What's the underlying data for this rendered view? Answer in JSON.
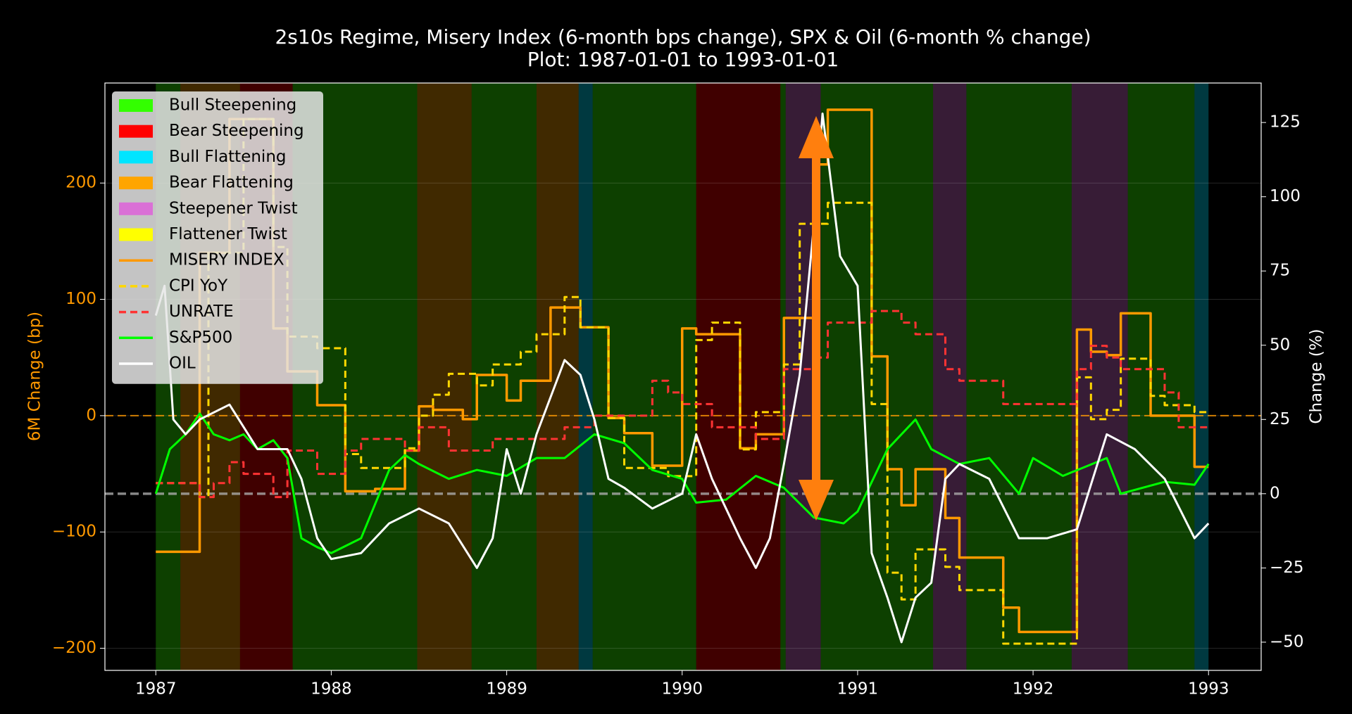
{
  "chart_data": {
    "type": "line",
    "title": "2s10s Regime, Misery Index (6-month bps change), SPX & Oil (6-month % change)",
    "subtitle": "Plot: 1987-01-01 to 1993-01-01",
    "y_label": "6M Change (bp)",
    "y2_label": "Change (%)",
    "xlim": [
      1986.71,
      1993.3
    ],
    "xticks": [
      1987,
      1988,
      1989,
      1990,
      1991,
      1992,
      1993
    ],
    "ylim": [
      -219,
      286
    ],
    "yticks": [
      {
        "value": -200,
        "label": "−200"
      },
      {
        "value": -100,
        "label": "−100"
      },
      0,
      100,
      200
    ],
    "y2lim": [
      -59.5,
      138.3
    ],
    "y2ticks": [
      {
        "value": -50,
        "label": "−50"
      },
      {
        "value": -25,
        "label": "−25"
      },
      0,
      25,
      50,
      75,
      100,
      125
    ],
    "grid": true,
    "legend": "upper left",
    "regimes": [
      {
        "name": "Bull Steepening",
        "color": "#33ff00"
      },
      {
        "name": "Bear Steepening",
        "color": "#ff0000"
      },
      {
        "name": "Bull Flattening",
        "color": "#00e5ff"
      },
      {
        "name": "Bear Flattening",
        "color": "#ffa500"
      },
      {
        "name": "Steepener Twist",
        "color": "#da70d6"
      },
      {
        "name": "Flattener Twist",
        "color": "#ffff00"
      }
    ],
    "regime_spans": [
      {
        "start": 1987.0,
        "end": 1987.14,
        "regime": 0
      },
      {
        "start": 1987.14,
        "end": 1987.48,
        "regime": 3
      },
      {
        "start": 1987.48,
        "end": 1987.78,
        "regime": 1
      },
      {
        "start": 1987.78,
        "end": 1988.49,
        "regime": 0
      },
      {
        "start": 1988.49,
        "end": 1988.8,
        "regime": 3
      },
      {
        "start": 1988.8,
        "end": 1989.17,
        "regime": 0
      },
      {
        "start": 1989.17,
        "end": 1989.41,
        "regime": 3
      },
      {
        "start": 1989.41,
        "end": 1989.49,
        "regime": 2
      },
      {
        "start": 1989.49,
        "end": 1990.08,
        "regime": 0
      },
      {
        "start": 1990.08,
        "end": 1990.56,
        "regime": 1
      },
      {
        "start": 1990.56,
        "end": 1990.59,
        "regime": 0
      },
      {
        "start": 1990.59,
        "end": 1990.79,
        "regime": 4
      },
      {
        "start": 1990.79,
        "end": 1991.43,
        "regime": 0
      },
      {
        "start": 1991.43,
        "end": 1991.62,
        "regime": 4
      },
      {
        "start": 1991.62,
        "end": 1992.22,
        "regime": 0
      },
      {
        "start": 1992.22,
        "end": 1992.54,
        "regime": 4
      },
      {
        "start": 1992.54,
        "end": 1992.92,
        "regime": 0
      },
      {
        "start": 1992.92,
        "end": 1993.0,
        "regime": 2
      }
    ],
    "hlines": [
      {
        "axis": "y",
        "value": 0,
        "color": "#ff9900"
      },
      {
        "axis": "y2",
        "value": 0,
        "color": "#aaaaaa"
      }
    ],
    "series": [
      {
        "name": "MISERY INDEX",
        "color": "#ff9900",
        "axis": "y",
        "step": true,
        "dash": false,
        "x": [
          1987.0,
          1987.25,
          1987.42,
          1987.67,
          1987.75,
          1987.92,
          1988.08,
          1988.25,
          1988.42,
          1988.5,
          1988.58,
          1988.75,
          1988.83,
          1989.0,
          1989.08,
          1989.25,
          1989.42,
          1989.58,
          1989.67,
          1989.83,
          1990.0,
          1990.08,
          1990.33,
          1990.42,
          1990.58,
          1990.75,
          1990.83,
          1991.08,
          1991.17,
          1991.25,
          1991.33,
          1991.5,
          1991.58,
          1991.83,
          1991.92,
          1992.25,
          1992.33,
          1992.42,
          1992.5,
          1992.67,
          1992.92,
          1993.0
        ],
        "values": [
          -117,
          140,
          255,
          75,
          38,
          9,
          -65,
          -63,
          -30,
          8,
          5,
          -3,
          35,
          13,
          30,
          93,
          76,
          -2,
          -15,
          -43,
          75,
          70,
          -28,
          -16,
          84,
          216,
          263,
          51,
          -46,
          -77,
          -46,
          -88,
          -122,
          -165,
          -186,
          74,
          55,
          52,
          88,
          0,
          -44,
          -44
        ]
      },
      {
        "name": "CPI YoY",
        "color": "#ffd700",
        "axis": "y",
        "step": true,
        "dash": true,
        "x": [
          1987.0,
          1987.25,
          1987.3,
          1987.5,
          1987.67,
          1987.75,
          1987.92,
          1988.08,
          1988.17,
          1988.42,
          1988.5,
          1988.58,
          1988.67,
          1988.83,
          1988.92,
          1989.08,
          1989.17,
          1989.33,
          1989.42,
          1989.58,
          1989.67,
          1989.92,
          1990.08,
          1990.17,
          1990.33,
          1990.42,
          1990.58,
          1990.67,
          1990.83,
          1991.08,
          1991.17,
          1991.25,
          1991.33,
          1991.5,
          1991.58,
          1991.83,
          1992.25,
          1992.33,
          1992.42,
          1992.5,
          1992.67,
          1992.75,
          1992.92,
          1993.0
        ],
        "values": [
          -58,
          -70,
          140,
          255,
          145,
          68,
          58,
          -33,
          -45,
          -28,
          0,
          18,
          36,
          26,
          44,
          55,
          70,
          102,
          76,
          -2,
          -45,
          -52,
          65,
          80,
          -29,
          3,
          44,
          165,
          183,
          10,
          -135,
          -158,
          -115,
          -130,
          -150,
          -196,
          33,
          -3,
          5,
          49,
          17,
          9,
          3,
          3
        ]
      },
      {
        "name": "UNRATE",
        "color": "#ff3333",
        "axis": "y",
        "step": true,
        "dash": true,
        "x": [
          1987.0,
          1987.25,
          1987.33,
          1987.42,
          1987.5,
          1987.67,
          1987.75,
          1987.92,
          1988.08,
          1988.17,
          1988.42,
          1988.5,
          1988.67,
          1988.92,
          1989.33,
          1989.5,
          1989.83,
          1989.92,
          1990.0,
          1990.17,
          1990.42,
          1990.58,
          1990.75,
          1990.83,
          1991.08,
          1991.25,
          1991.33,
          1991.5,
          1991.58,
          1991.83,
          1992.25,
          1992.33,
          1992.42,
          1992.5,
          1992.75,
          1992.83,
          1993.0
        ],
        "values": [
          -58,
          -70,
          -58,
          -40,
          -50,
          -70,
          -30,
          -50,
          -30,
          -20,
          -30,
          -10,
          -30,
          -20,
          -10,
          0,
          30,
          20,
          10,
          -10,
          -20,
          40,
          50,
          80,
          90,
          80,
          70,
          40,
          30,
          10,
          40,
          60,
          50,
          40,
          20,
          -10,
          -10
        ]
      },
      {
        "name": "S&P500",
        "color": "#00ff00",
        "axis": "y2",
        "step": false,
        "dash": false,
        "x": [
          1987.0,
          1987.08,
          1987.17,
          1987.25,
          1987.33,
          1987.42,
          1987.5,
          1987.58,
          1987.67,
          1987.75,
          1987.83,
          1987.92,
          1988.0,
          1988.17,
          1988.33,
          1988.42,
          1988.5,
          1988.67,
          1988.83,
          1989.0,
          1989.17,
          1989.33,
          1989.5,
          1989.67,
          1989.83,
          1990.0,
          1990.08,
          1990.25,
          1990.42,
          1990.58,
          1990.75,
          1990.92,
          1991.0,
          1991.17,
          1991.33,
          1991.42,
          1991.58,
          1991.75,
          1991.92,
          1992.0,
          1992.17,
          1992.42,
          1992.5,
          1992.75,
          1992.92,
          1993.0
        ],
        "values": [
          0,
          15,
          20,
          27,
          20,
          18,
          20,
          15,
          18,
          12,
          -15,
          -18,
          -20,
          -15,
          8,
          13,
          10,
          5,
          8,
          6,
          12,
          12,
          20,
          17,
          8,
          5,
          -3,
          -2,
          6,
          2,
          -8,
          -10,
          -6,
          15,
          25,
          15,
          10,
          12,
          0,
          12,
          6,
          12,
          0,
          4,
          3,
          10
        ]
      },
      {
        "name": "OIL",
        "color": "#ffffff",
        "axis": "y2",
        "step": false,
        "dash": false,
        "x": [
          1987.0,
          1987.05,
          1987.1,
          1987.17,
          1987.25,
          1987.42,
          1987.58,
          1987.75,
          1987.83,
          1987.92,
          1988.0,
          1988.17,
          1988.33,
          1988.5,
          1988.67,
          1988.83,
          1988.92,
          1989.0,
          1989.08,
          1989.17,
          1989.33,
          1989.42,
          1989.5,
          1989.58,
          1989.67,
          1989.83,
          1990.0,
          1990.08,
          1990.17,
          1990.33,
          1990.42,
          1990.5,
          1990.58,
          1990.67,
          1990.75,
          1990.8,
          1990.9,
          1991.0,
          1991.08,
          1991.17,
          1991.25,
          1991.33,
          1991.42,
          1991.5,
          1991.58,
          1991.75,
          1991.92,
          1992.08,
          1992.25,
          1992.42,
          1992.58,
          1992.75,
          1992.92,
          1993.0
        ],
        "values": [
          60,
          70,
          25,
          20,
          25,
          30,
          15,
          15,
          5,
          -15,
          -22,
          -20,
          -10,
          -5,
          -10,
          -25,
          -15,
          15,
          0,
          20,
          45,
          40,
          25,
          5,
          2,
          -5,
          0,
          20,
          5,
          -15,
          -25,
          -15,
          10,
          40,
          90,
          128,
          80,
          70,
          -20,
          -35,
          -50,
          -35,
          -30,
          5,
          10,
          5,
          -15,
          -15,
          -12,
          20,
          15,
          5,
          -15,
          -10
        ]
      }
    ]
  }
}
